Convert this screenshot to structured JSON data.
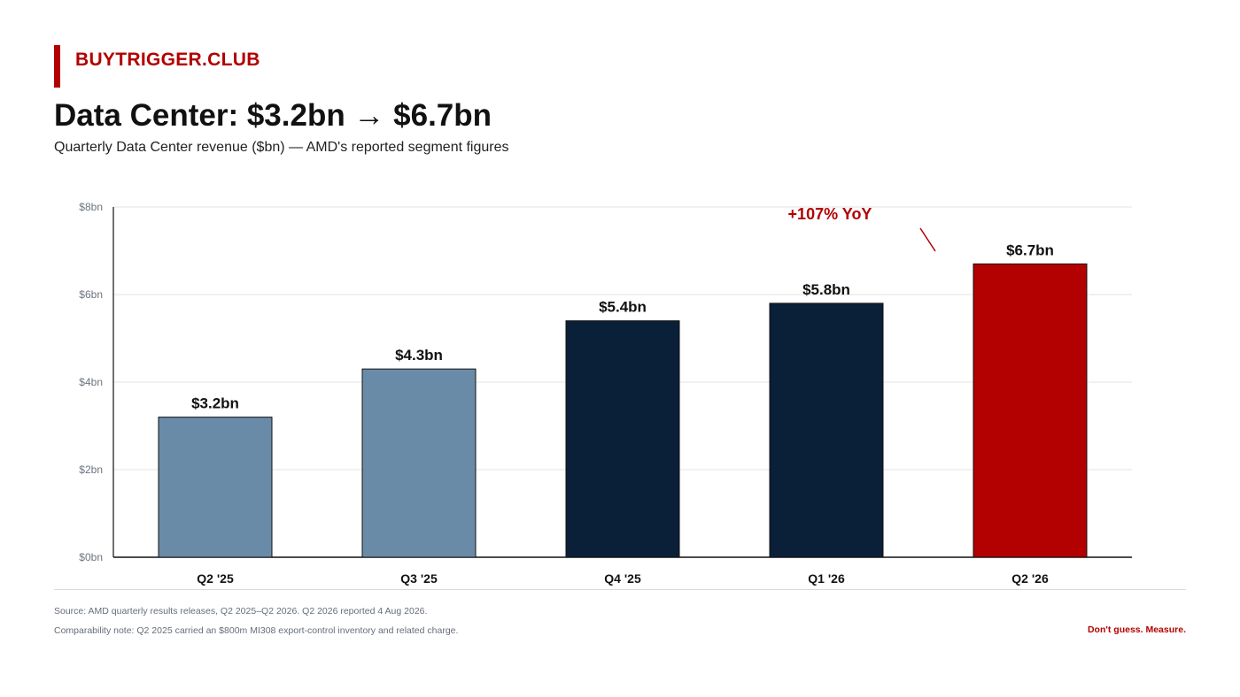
{
  "header": {
    "brand": "BUYTRIGGER.CLUB",
    "title": "Data Center: $3.2bn → $6.7bn",
    "subtitle": "Quarterly Data Center revenue ($bn) — AMD's reported segment figures"
  },
  "chart_data": {
    "type": "bar",
    "categories": [
      "Q2 '25",
      "Q3 '25",
      "Q4 '25",
      "Q1 '26",
      "Q2 '26"
    ],
    "values": [
      3.2,
      4.3,
      5.4,
      5.8,
      6.7
    ],
    "data_labels": [
      "$3.2bn",
      "$4.3bn",
      "$5.4bn",
      "$5.8bn",
      "$6.7bn"
    ],
    "bar_colors": [
      "#6a8ba7",
      "#6a8ba7",
      "#0a2038",
      "#0a2038",
      "#b30000"
    ],
    "ylim": [
      0,
      8
    ],
    "y_ticks": [
      0,
      2,
      4,
      6,
      8
    ],
    "y_tick_labels": [
      "$0bn",
      "$2bn",
      "$4bn",
      "$6bn",
      "$8bn"
    ],
    "grid": true,
    "annotation": {
      "text": "+107% YoY",
      "color": "#b30000",
      "points_to": "Q2 '26"
    }
  },
  "footer": {
    "source": "Source: AMD quarterly results releases, Q2 2025–Q2 2026. Q2 2026 reported 4 Aug 2026.",
    "note": "Comparability note: Q2 2025 carried an $800m MI308 export-control inventory and related charge.",
    "tagline": "Don't guess. Measure."
  }
}
